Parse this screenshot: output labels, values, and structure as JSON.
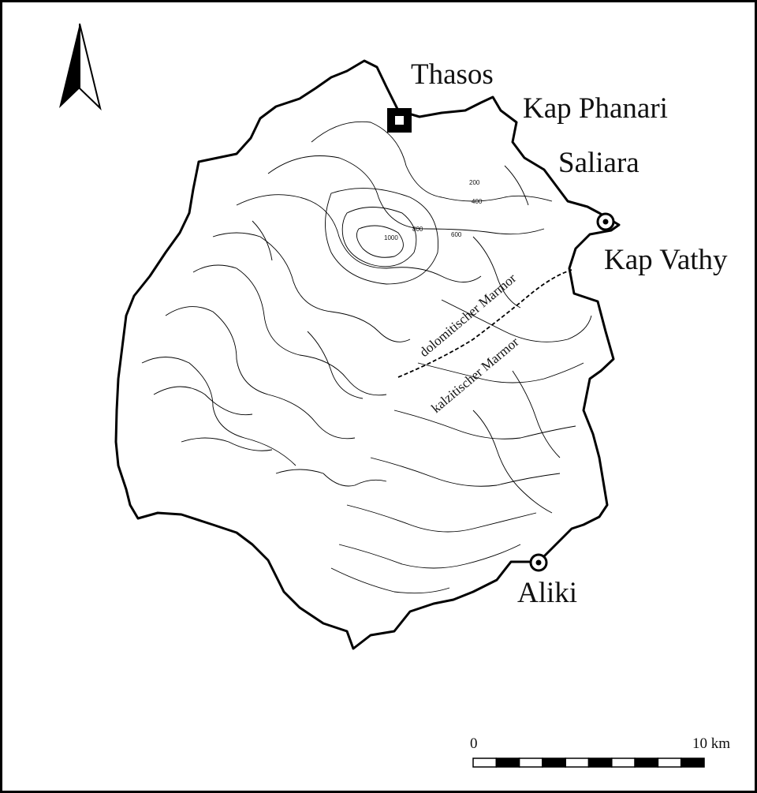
{
  "labels": {
    "thasos": "Thasos",
    "kap_phanari": "Kap Phanari",
    "saliara": "Saliara",
    "kap_vathy": "Kap Vathy",
    "aliki": "Aliki"
  },
  "contour_labels": {
    "c200": "200",
    "c400": "400",
    "c600": "600",
    "c800": "800",
    "c1000": "1000"
  },
  "zones": {
    "dolomitic": "dolomitischer Marmor",
    "calcitic": "kalzitischer Marmor"
  },
  "scale_bar": {
    "start_label": "0",
    "end_label": "10 km",
    "segments": 10
  },
  "icons": {
    "north_arrow": "north-arrow-icon",
    "town": "square-town-icon",
    "quarry": "circle-dot-quarry-icon"
  },
  "colors": {
    "ink": "#000000",
    "paper": "#ffffff"
  }
}
